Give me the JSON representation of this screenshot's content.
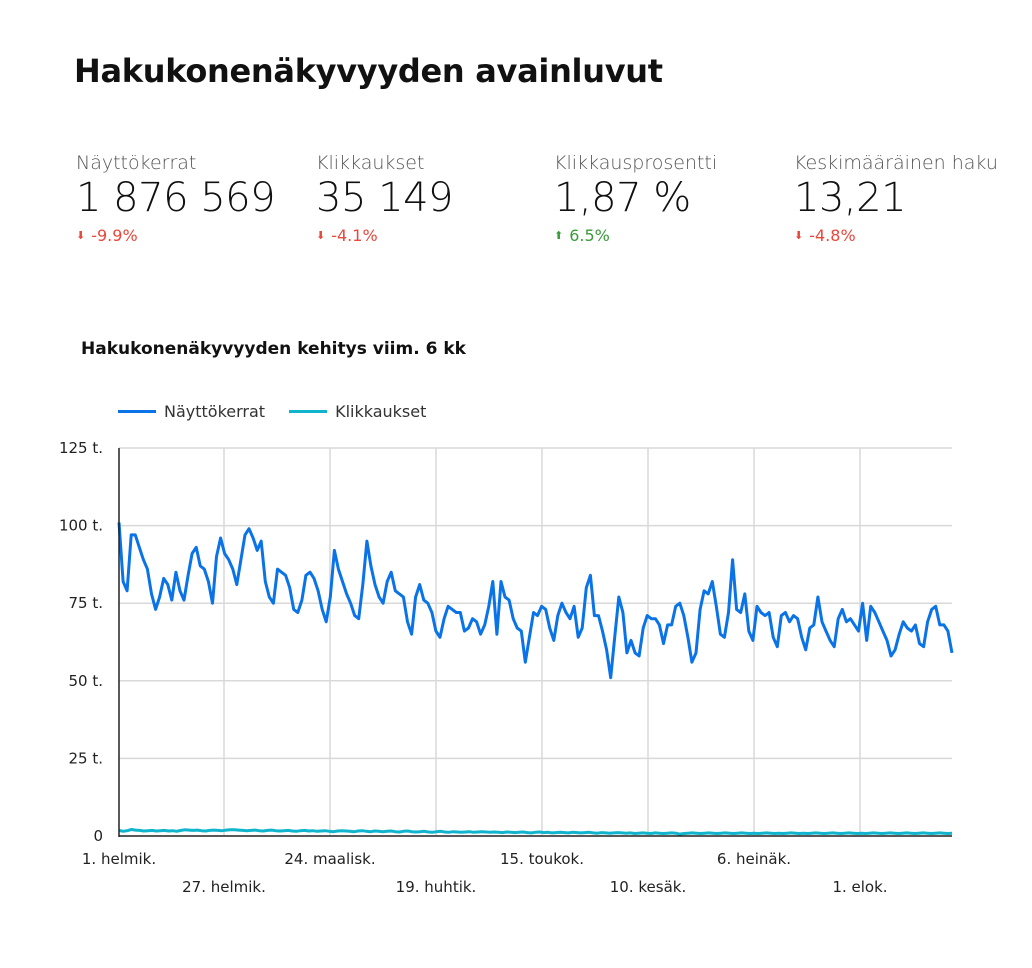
{
  "header": {
    "title": "Hakukonenäkyvyyden avainluvut"
  },
  "kpis": [
    {
      "label": "Näyttökerrat",
      "value": "1 876 569",
      "change": "-9.9%",
      "direction": "down",
      "icon": "arrow-down-icon"
    },
    {
      "label": "Klikkaukset",
      "value": "35 149",
      "change": "-4.1%",
      "direction": "down",
      "icon": "arrow-down-icon"
    },
    {
      "label": "Klikkausprosentti",
      "value": "1,87 %",
      "change": "6.5%",
      "direction": "up",
      "icon": "arrow-up-icon"
    },
    {
      "label": "Keskimääräinen haku",
      "value": "13,21",
      "change": "-4.8%",
      "direction": "down",
      "icon": "arrow-down-icon"
    }
  ],
  "colors": {
    "down": "#e8473b",
    "up": "#3a9b3a",
    "series1": "#0a73e8",
    "series2": "#10b4cc",
    "grid": "#d9d9d9"
  },
  "chart_data": {
    "type": "line",
    "title": "Hakukonenäkyvyyden kehitys viim. 6 kk",
    "xlabel": "",
    "ylabel": "",
    "ylim": [
      0,
      125000
    ],
    "yticks": [
      "0",
      "25 t.",
      "50 t.",
      "75 t.",
      "100 t.",
      "125 t."
    ],
    "xticks_row1": [
      "1. helmik.",
      "24. maalisk.",
      "15. toukok.",
      "6. heinäk."
    ],
    "xticks_row2": [
      "27. helmik.",
      "19. huhtik.",
      "10. kesäk.",
      "1. elok."
    ],
    "legend": [
      "Näyttökerrat",
      "Klikkaukset"
    ],
    "legend_position": "top",
    "grid": true,
    "series": [
      {
        "name": "Näyttökerrat",
        "values": [
          101,
          82,
          79,
          97,
          97,
          93,
          89,
          86,
          78,
          73,
          77,
          83,
          81,
          76,
          85,
          79,
          76,
          84,
          91,
          93,
          87,
          86,
          82,
          75,
          90,
          96,
          91,
          89,
          86,
          81,
          89,
          97,
          99,
          96,
          92,
          95,
          82,
          77,
          75,
          86,
          85,
          84,
          80,
          73,
          72,
          76,
          84,
          85,
          83,
          79,
          73,
          69,
          77,
          92,
          86,
          82,
          78,
          75,
          71,
          70,
          81,
          95,
          87,
          81,
          77,
          75,
          82,
          85,
          79,
          78,
          77,
          69,
          65,
          77,
          81,
          76,
          75,
          72,
          66,
          64,
          70,
          74,
          73,
          72,
          72,
          66,
          67,
          70,
          69,
          65,
          68,
          74,
          82,
          65,
          82,
          77,
          76,
          70,
          67,
          66,
          56,
          64,
          72,
          71,
          74,
          73,
          67,
          63,
          71,
          75,
          72,
          70,
          74,
          64,
          67,
          80,
          84,
          71,
          71,
          66,
          60,
          51,
          64,
          77,
          72,
          59,
          63,
          59,
          58,
          67,
          71,
          70,
          70,
          68,
          62,
          68,
          68,
          74,
          75,
          71,
          64,
          56,
          59,
          73,
          79,
          78,
          82,
          74,
          65,
          64,
          72,
          89,
          73,
          72,
          78,
          66,
          63,
          74,
          72,
          71,
          72,
          64,
          61,
          71,
          72,
          69,
          71,
          70,
          64,
          60,
          67,
          68,
          77,
          69,
          66,
          63,
          61,
          70,
          73,
          69,
          70,
          68,
          66,
          75,
          63,
          74,
          72,
          69,
          66,
          63,
          58,
          60,
          65,
          69,
          67,
          66,
          68,
          62,
          61,
          69,
          73,
          74,
          68,
          68,
          66,
          59
        ]
      },
      {
        "name": "Klikkaukset",
        "values": [
          1.8,
          1.5,
          1.7,
          2.1,
          1.9,
          1.8,
          1.6,
          1.7,
          1.8,
          1.6,
          1.7,
          1.8,
          1.6,
          1.7,
          1.5,
          1.8,
          2.0,
          1.9,
          1.8,
          1.9,
          1.7,
          1.6,
          1.8,
          1.9,
          1.8,
          1.7,
          1.9,
          2.0,
          2.0,
          1.9,
          1.8,
          1.7,
          1.8,
          1.9,
          1.7,
          1.6,
          1.8,
          1.9,
          1.7,
          1.6,
          1.7,
          1.8,
          1.6,
          1.5,
          1.7,
          1.8,
          1.6,
          1.7,
          1.5,
          1.6,
          1.7,
          1.5,
          1.4,
          1.6,
          1.7,
          1.6,
          1.5,
          1.4,
          1.6,
          1.7,
          1.5,
          1.4,
          1.6,
          1.5,
          1.4,
          1.5,
          1.6,
          1.4,
          1.3,
          1.5,
          1.6,
          1.4,
          1.3,
          1.4,
          1.5,
          1.3,
          1.2,
          1.4,
          1.5,
          1.3,
          1.2,
          1.4,
          1.3,
          1.2,
          1.3,
          1.4,
          1.2,
          1.3,
          1.4,
          1.3,
          1.2,
          1.3,
          1.2,
          1.1,
          1.3,
          1.2,
          1.1,
          1.2,
          1.3,
          1.1,
          1.0,
          1.2,
          1.3,
          1.1,
          1.2,
          1.0,
          1.1,
          1.2,
          1.1,
          1.0,
          1.2,
          1.1,
          1.0,
          1.1,
          1.2,
          1.0,
          0.9,
          1.1,
          1.0,
          0.9,
          1.0,
          1.1,
          1.0,
          0.9,
          1.0,
          0.8,
          0.9,
          1.0,
          0.9,
          0.8,
          1.0,
          0.9,
          0.8,
          0.9,
          1.0,
          0.9,
          0.6,
          0.8,
          0.9,
          1.0,
          0.9,
          0.8,
          0.9,
          1.0,
          0.9,
          0.8,
          0.9,
          1.0,
          0.9,
          0.8,
          0.9,
          1.0,
          0.9,
          0.8,
          0.9,
          0.8,
          0.9,
          1.0,
          0.9,
          0.8,
          0.9,
          0.8,
          0.9,
          1.0,
          0.9,
          0.8,
          0.9,
          0.8,
          0.9,
          1.0,
          0.9,
          0.8,
          0.9,
          1.0,
          0.9,
          0.8,
          0.9,
          1.0,
          0.9,
          0.8,
          0.9,
          0.8,
          0.9,
          1.0,
          0.9,
          0.8,
          0.9,
          1.0,
          0.9,
          0.8,
          0.9,
          1.0,
          0.9,
          0.8,
          0.9,
          1.0,
          0.9,
          0.8,
          0.9,
          1.0,
          0.9,
          0.8,
          0.9
        ]
      }
    ],
    "value_unit": "thousands"
  }
}
